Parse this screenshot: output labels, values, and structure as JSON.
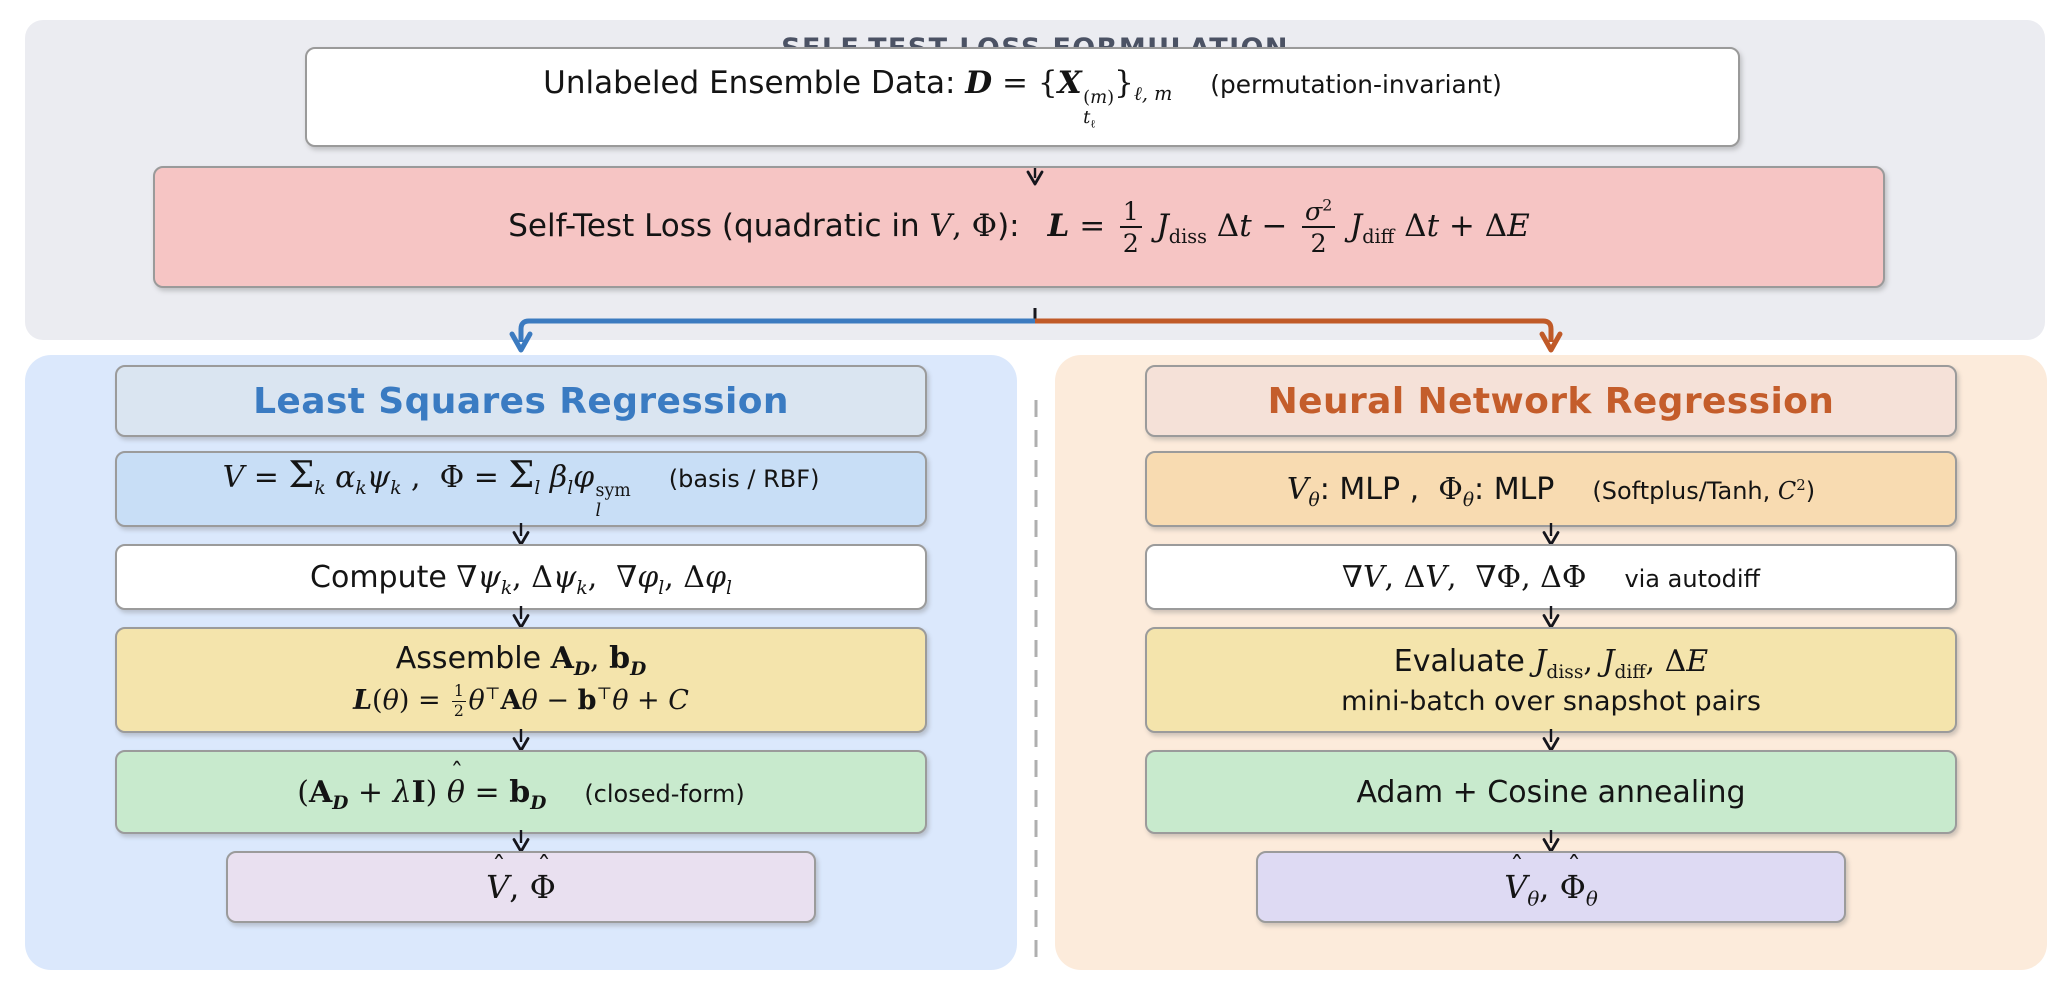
{
  "title": "SELF-TEST LOSS FORMULATION",
  "palette": {
    "top_panel_bg": "#EBECF1",
    "data_box_bg": "#FFFFFF",
    "loss_box_bg": "#F6C5C4",
    "left_panel_bg": "#DBE8FC",
    "right_panel_bg": "#FCEBDB",
    "left_accent": "#3A7BC2",
    "right_accent": "#C45D2B",
    "branch_blue": "#3C7BC0",
    "branch_orange": "#C05A28",
    "basis_box_bg": "#C8DEF6",
    "mlp_box_bg": "#F8DBB1",
    "yellow_box_bg": "#F4E4AC",
    "green_box_bg": "#C8EACD",
    "left_output_bg": "#E9E0F0",
    "right_output_bg": "#DEDAF3",
    "title_color": "#4B5264",
    "arrow_color": "#16161D"
  },
  "top": {
    "data_box": "Unlabeled Ensemble Data: <span class='m'><span class='cal'>D</span> = {<b><i>X</i></b><span class='ss'><span class='u'>(<i>m</i>)</span><span class='d'><i>t</i><sub>ℓ</sub></span></span>}<sub><i>ℓ, m</i></sub></span><span class='note gap2'>(permutation-invariant)</span>",
    "loss_box": "Self-Test Loss (quadratic in <span class='m'><i>V</i>, Φ</span>):<span class='m gap1'><span class='cal'>L</span> = <span class='frac'><span class='num'>1</span><span class='den'>2</span></span> <i>J</i><sub>diss</sub> Δ<i>t</i> − <span class='frac'><span class='num'><i>σ</i><sup>2</sup></span><span class='den'>2</span></span> <i>J</i><sub>diff</sub> Δ<i>t</i> + Δ<i>E</i></span>"
  },
  "left": {
    "header": "Least Squares Regression",
    "basis": "<span class='m'><i>V</i> = <span class='sum'>Σ</span><sub><i>k</i></sub> <i>α</i><sub><i>k</i></sub><i>ψ</i><sub><i>k</i></sub> , &nbsp;Φ = <span class='sum'>Σ</span><sub><i>l</i></sub> <i>β</i><sub><i>l</i></sub><i>φ</i><span class='ss'><span class='u'>sym</span><span class='d'><i>l</i></span></span></span><span class='note gap2'>(basis / RBF)</span>",
    "compute": "Compute <span class='m'>∇<i>ψ</i><sub><i>k</i></sub>, Δ<i>ψ</i><sub><i>k</i></sub>, &nbsp;∇<i>φ</i><sub><i>l</i></sub>, Δ<i>φ</i><sub><i>l</i></sub></span>",
    "assemble_line1": "Assemble <span class='m'><b>A</b><sub class='cal'>D</sub>, <b>b</b><sub class='cal'>D</sub></span>",
    "assemble_line2": "<span class='m'><span class='cal'>L</span>(<i>θ</i>) = <span class='frac fsm'><span class='num'>1</span><span class='den'>2</span></span><i>θ</i><sup>⊤</sup><b>A</b><i>θ</i> − <b>b</b><sup>⊤</sup><i>θ</i> + <i>C</i></span>",
    "solve": "<span class='m'>(<b>A</b><sub class='cal'>D</sub> + <i>λ</i><b>I</b>) <span class='hat'><span class='acc'>ˆ</span><i>θ</i></span> = <b>b</b><sub class='cal'>D</sub></span><span class='note gap2'>(closed-form)</span>",
    "output": "<span class='m'><span class='hat'><span class='acc'>ˆ</span><i>V</i></span>, <span class='hat'><span class='acc'>ˆ</span>Φ</span></span>"
  },
  "right": {
    "header": "Neural Network Regression",
    "mlp": "<span class='m'><i>V</i><sub><i>θ</i></sub></span>: MLP , &nbsp;<span class='m'>Φ<sub><i>θ</i></sub></span>: MLP<span class='note gap2'>(Softplus/Tanh, <span class='m'><i>C</i><sup>2</sup></span>)</span>",
    "autodiff": "<span class='m'>∇<i>V</i>, Δ<i>V</i>, &nbsp;∇Φ, ΔΦ</span><span class='note gap2'>via autodiff</span>",
    "evaluate_line1": "Evaluate <span class='m'><i>J</i><sub>diss</sub>, <i>J</i><sub>diff</sub>, Δ<i>E</i></span>",
    "evaluate_line2": "mini-batch over snapshot pairs",
    "adam": "Adam + Cosine annealing",
    "output": "<span class='m'><span class='hat'><span class='acc'>ˆ</span><i>V</i></span><sub><i>θ</i></sub>, <span class='hat'><span class='acc'>ˆ</span>Φ</span><sub><i>θ</i></sub></span>"
  }
}
